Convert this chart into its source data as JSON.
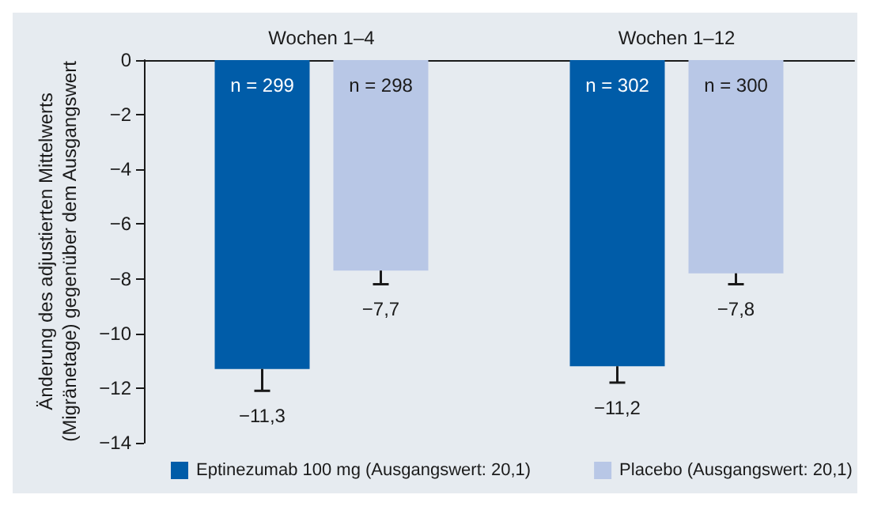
{
  "chart_data": {
    "type": "bar",
    "ylabel": "Änderung des adjustierten Mittelwerts\n(Migränetage) gegenüber dem Ausgangswert",
    "categories": [
      "Wochen 1–4",
      "Wochen 1–12"
    ],
    "series": [
      {
        "name": "Eptinezumab 100 mg (Ausgangswert: 20,1)",
        "color": "#005ca8",
        "values": [
          -11.3,
          -11.2
        ],
        "errors": [
          [
            -12.1,
            -11.3
          ],
          [
            -11.8,
            -11.2
          ]
        ],
        "value_labels": [
          "−11,3",
          "−11,2"
        ]
      },
      {
        "name": "Placebo (Ausgangswert: 20,1)",
        "color": "#b8c7e6",
        "values": [
          -7.7,
          -7.8
        ],
        "errors": [
          [
            -8.2,
            -7.7
          ],
          [
            -8.2,
            -7.8
          ]
        ],
        "value_labels": [
          "−7,7",
          "−7,8"
        ]
      }
    ],
    "ylim": [
      -14,
      0
    ],
    "yticks": [
      {
        "value": -14,
        "label": "−14"
      },
      {
        "value": -12,
        "label": "−12"
      },
      {
        "value": -10,
        "label": "−10"
      },
      {
        "value": -8,
        "label": "−8"
      },
      {
        "value": -6,
        "label": "−6"
      },
      {
        "value": -4,
        "label": "−4"
      },
      {
        "value": -2,
        "label": "−2"
      },
      0
    ],
    "annotations": [
      "n = 299",
      "n = 298",
      "n = 302",
      "n = 300"
    ],
    "grid": false,
    "legend": "bottom"
  }
}
